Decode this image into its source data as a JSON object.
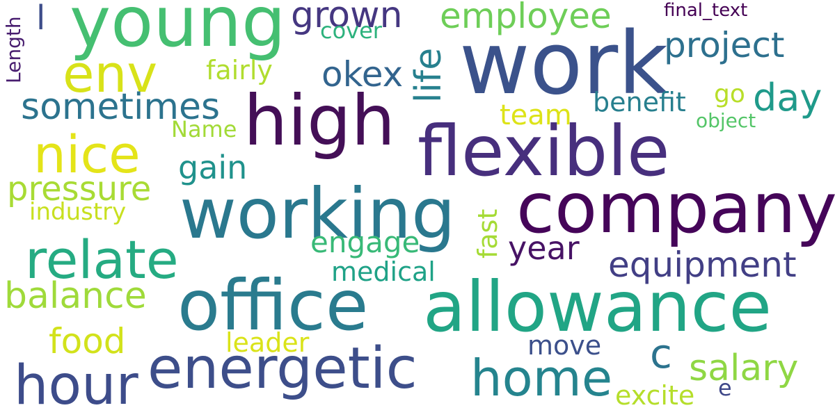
{
  "words": [
    {
      "text": "work",
      "color": "#3b528b"
    },
    {
      "text": "young",
      "color": "#45bf71"
    },
    {
      "text": "high",
      "color": "#440f57"
    },
    {
      "text": "flexible",
      "color": "#472f7d"
    },
    {
      "text": "company",
      "color": "#450559"
    },
    {
      "text": "working",
      "color": "#2a788e"
    },
    {
      "text": "office",
      "color": "#2a7b8e"
    },
    {
      "text": "allowance",
      "color": "#21a585"
    },
    {
      "text": "energetic",
      "color": "#3d4e8a"
    },
    {
      "text": "home",
      "color": "#25848e"
    },
    {
      "text": "hour",
      "color": "#3d4c8a"
    },
    {
      "text": "relate",
      "color": "#25ab82"
    },
    {
      "text": "env",
      "color": "#d8e219"
    },
    {
      "text": "nice",
      "color": "#e4e419"
    },
    {
      "text": "c",
      "color": "#2c738e"
    },
    {
      "text": "grown",
      "color": "#453781"
    },
    {
      "text": "employee",
      "color": "#6ece58"
    },
    {
      "text": "project",
      "color": "#2d708e"
    },
    {
      "text": "life",
      "color": "#27808e"
    },
    {
      "text": "okex",
      "color": "#32648e"
    },
    {
      "text": "day",
      "color": "#1f9a8a"
    },
    {
      "text": "sometimes",
      "color": "#2c738e"
    },
    {
      "text": "benefit",
      "color": "#277f8e"
    },
    {
      "text": "go",
      "color": "#b8de29"
    },
    {
      "text": "team",
      "color": "#dde318"
    },
    {
      "text": "equipment",
      "color": "#423f85"
    },
    {
      "text": "year",
      "color": "#471365"
    },
    {
      "text": "pressure",
      "color": "#a8db34"
    },
    {
      "text": "balance",
      "color": "#9fda3a"
    },
    {
      "text": "food",
      "color": "#d2e21b"
    },
    {
      "text": "salary",
      "color": "#8fd744"
    },
    {
      "text": "gain",
      "color": "#20928c"
    },
    {
      "text": "engage",
      "color": "#38b977"
    },
    {
      "text": "medical",
      "color": "#1fa287"
    },
    {
      "text": "move",
      "color": "#3c508b"
    },
    {
      "text": "excite",
      "color": "#b5de2b"
    },
    {
      "text": "leader",
      "color": "#dae319"
    },
    {
      "text": "fairly",
      "color": "#b0dd2f"
    },
    {
      "text": "cover",
      "color": "#2db27d"
    },
    {
      "text": "industry",
      "color": "#c8e020"
    },
    {
      "text": "Name",
      "color": "#a2da37"
    },
    {
      "text": "object",
      "color": "#54c568"
    },
    {
      "text": "final_text",
      "color": "#440154"
    },
    {
      "text": "l",
      "color": "#3d4d8a"
    },
    {
      "text": "e",
      "color": "#3f4889"
    },
    {
      "text": "fast",
      "color": "#a5db36"
    },
    {
      "text": "Length",
      "color": "#481d6f"
    }
  ]
}
